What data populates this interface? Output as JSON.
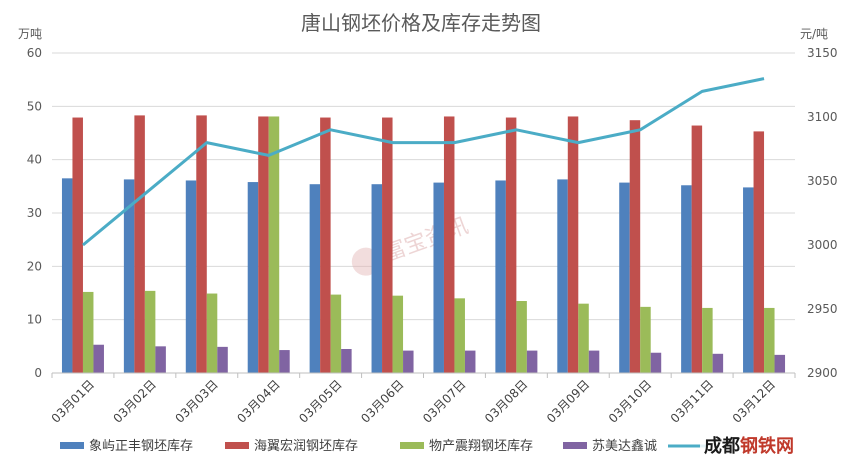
{
  "chart_data": {
    "type": "bar",
    "title": "唐山钢坯价格及库存走势图",
    "left_axis_unit": "万吨",
    "right_axis_unit": "元/吨",
    "categories": [
      "03月01日",
      "03月02日",
      "03月03日",
      "03月04日",
      "03月05日",
      "03月06日",
      "03月07日",
      "03月08日",
      "03月09日",
      "03月10日",
      "03月11日",
      "03月12日"
    ],
    "ylim_left": [
      0,
      60
    ],
    "yticks_left": [
      0,
      10,
      20,
      30,
      40,
      50,
      60
    ],
    "ylim_right": [
      2900,
      3150
    ],
    "yticks_right": [
      2900,
      2950,
      3000,
      3050,
      3100,
      3150
    ],
    "series": [
      {
        "name": "象屿正丰钢坯库存",
        "axis": "left",
        "color": "#4f81bd",
        "values": [
          36.5,
          36.3,
          36.1,
          35.8,
          35.4,
          35.4,
          35.7,
          36.1,
          36.3,
          35.7,
          35.2,
          34.8
        ]
      },
      {
        "name": "海翼宏润钢坯库存",
        "axis": "left",
        "color": "#c0504d",
        "values": [
          47.9,
          48.3,
          48.3,
          48.1,
          47.9,
          47.9,
          48.1,
          47.9,
          48.1,
          47.4,
          46.4,
          45.3
        ]
      },
      {
        "name": "物产震翔钢坯库存",
        "axis": "left",
        "color": "#9bbb59",
        "values": [
          15.2,
          15.4,
          14.9,
          48.1,
          14.7,
          14.5,
          14.0,
          13.5,
          13.0,
          12.4,
          12.2,
          12.2
        ]
      },
      {
        "name": "苏美达鑫诚",
        "axis": "left",
        "color": "#8064a2",
        "values": [
          5.3,
          5.0,
          4.9,
          4.3,
          4.5,
          4.2,
          4.2,
          4.2,
          4.2,
          3.8,
          3.6,
          3.4
        ]
      },
      {
        "name": "",
        "axis": "right",
        "type": "line",
        "color": "#4bacc6",
        "values": [
          3000,
          3040,
          3080,
          3070,
          3090,
          3080,
          3080,
          3090,
          3080,
          3090,
          3120,
          3130
        ]
      }
    ],
    "grid": true,
    "legend_position": "bottom"
  },
  "watermark": "富宝资讯",
  "brand": {
    "left": "成都",
    "accent": "钢铁网"
  }
}
